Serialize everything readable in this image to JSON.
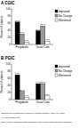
{
  "chart_data": [
    {
      "type": "bar",
      "title": "A CGIC",
      "y_label": "Percent of patients",
      "categories": [
        "Pregabalin",
        "Usual Care"
      ],
      "series": [
        {
          "name": "Improved",
          "color": "#000000",
          "values": [
            63.2,
            38.6
          ],
          "value_labels": [
            "63.2%",
            "38.6%"
          ]
        },
        {
          "name": "No Change",
          "color": "#9a9a9a",
          "values": [
            29.8,
            52.1
          ],
          "value_labels": [
            "29.8%",
            "52.1%"
          ]
        },
        {
          "name": "Worsened",
          "color": "#ffffff",
          "values": [
            7.0,
            9.3
          ],
          "value_labels": [
            "7.0%",
            "9.3%"
          ]
        }
      ],
      "ylim": [
        0,
        100
      ],
      "yticks": [
        0,
        20,
        40,
        60,
        80,
        100
      ],
      "legend": "upper right",
      "data_labels": true
    },
    {
      "type": "bar",
      "title": "B PGIC",
      "y_label": "Percent of patients",
      "categories": [
        "Pregabalin",
        "Usual Care"
      ],
      "series": [
        {
          "name": "Improved",
          "color": "#000000",
          "values": [
            69.5,
            44.7
          ],
          "value_labels": [
            "69.5%",
            "44.7%"
          ]
        },
        {
          "name": "No Change",
          "color": "#9a9a9a",
          "values": [
            23.4,
            45.1
          ],
          "value_labels": [
            "23.4%",
            "45.1%"
          ]
        },
        {
          "name": "Worsened",
          "color": "#ffffff",
          "values": [
            7.1,
            10.2
          ],
          "value_labels": [
            "7.1%",
            "10.2%"
          ]
        }
      ],
      "ylim": [
        0,
        100
      ],
      "yticks": [
        0,
        20,
        40,
        60,
        80,
        100
      ],
      "legend": "upper right",
      "data_labels": true
    }
  ],
  "footnotes": [
    "Categories are collapsed from \"Improved\" (including minimally, much, very much)",
    "* P<0.001 vs usual care",
    "CGIC, Clinician Global Impression of Change; PGIC, Patient Global Impression of Change"
  ]
}
